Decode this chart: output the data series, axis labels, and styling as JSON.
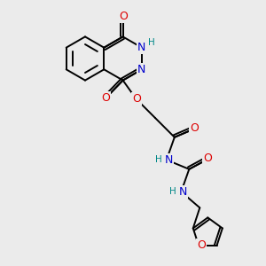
{
  "background_color": "#ebebeb",
  "bond_color": "#000000",
  "atom_colors": {
    "O": "#dd0000",
    "N": "#0000cc",
    "H": "#008888",
    "C": "#000000"
  },
  "bond_width": 1.4,
  "font_size_atoms": 9,
  "font_size_small": 7.5
}
